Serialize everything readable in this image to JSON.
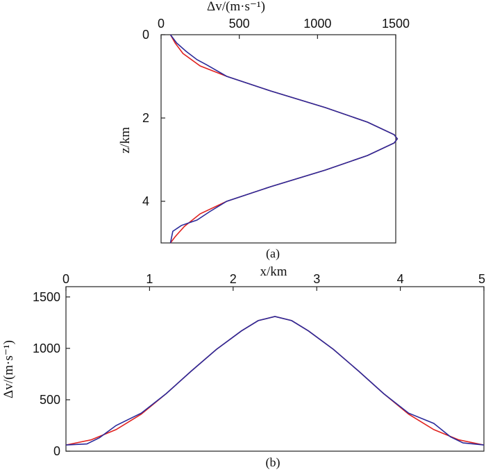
{
  "colors": {
    "true_model": "#e0221f",
    "inverted_model": "#2a2a9a"
  },
  "chart_data": [
    {
      "panel": "(a)",
      "type": "line",
      "xlabel": "Δv/(m·s⁻¹)",
      "ylabel": "z/km",
      "xlim": [
        0,
        1500
      ],
      "ylim": [
        0,
        5
      ],
      "y_inverted": true,
      "x_axis_position": "top",
      "xticks": [
        "0",
        "500",
        "1000",
        "1500"
      ],
      "yticks": [
        "0",
        "2",
        "4"
      ],
      "series": [
        {
          "color": "#e0221f",
          "points": [
            [
              60,
              0
            ],
            [
              90,
              0.2
            ],
            [
              140,
              0.45
            ],
            [
              250,
              0.75
            ],
            [
              420,
              1.0
            ],
            [
              700,
              1.35
            ],
            [
              1050,
              1.75
            ],
            [
              1320,
              2.1
            ],
            [
              1490,
              2.4
            ],
            [
              1510,
              2.5
            ],
            [
              1490,
              2.6
            ],
            [
              1320,
              2.9
            ],
            [
              1050,
              3.25
            ],
            [
              700,
              3.65
            ],
            [
              420,
              4.0
            ],
            [
              250,
              4.3
            ],
            [
              150,
              4.6
            ],
            [
              90,
              4.85
            ],
            [
              60,
              5.0
            ]
          ]
        },
        {
          "color": "#2a2a9a",
          "points": [
            [
              60,
              0
            ],
            [
              100,
              0.2
            ],
            [
              160,
              0.4
            ],
            [
              230,
              0.6
            ],
            [
              290,
              0.72
            ],
            [
              420,
              1.0
            ],
            [
              700,
              1.35
            ],
            [
              1050,
              1.75
            ],
            [
              1320,
              2.1
            ],
            [
              1490,
              2.4
            ],
            [
              1510,
              2.5
            ],
            [
              1490,
              2.6
            ],
            [
              1320,
              2.9
            ],
            [
              1050,
              3.25
            ],
            [
              700,
              3.65
            ],
            [
              420,
              4.0
            ],
            [
              310,
              4.25
            ],
            [
              230,
              4.45
            ],
            [
              130,
              4.58
            ],
            [
              75,
              4.72
            ],
            [
              60,
              5.0
            ]
          ]
        }
      ]
    },
    {
      "panel": "(b)",
      "type": "line",
      "xlabel": "x/km",
      "ylabel": "Δv/(m·s⁻¹)",
      "xlim": [
        0,
        5
      ],
      "ylim": [
        0,
        1600
      ],
      "x_axis_position": "top",
      "xticks": [
        "0",
        "1",
        "2",
        "3",
        "4",
        "5"
      ],
      "yticks": [
        "0",
        "500",
        "1000",
        "1500"
      ],
      "series": [
        {
          "color": "#e0221f",
          "points": [
            [
              0,
              60
            ],
            [
              0.3,
              110
            ],
            [
              0.6,
              210
            ],
            [
              0.9,
              360
            ],
            [
              1.2,
              560
            ],
            [
              1.5,
              780
            ],
            [
              1.8,
              990
            ],
            [
              2.1,
              1170
            ],
            [
              2.3,
              1270
            ],
            [
              2.5,
              1310
            ],
            [
              2.7,
              1270
            ],
            [
              2.9,
              1170
            ],
            [
              3.2,
              990
            ],
            [
              3.5,
              780
            ],
            [
              3.8,
              560
            ],
            [
              4.1,
              360
            ],
            [
              4.4,
              210
            ],
            [
              4.7,
              110
            ],
            [
              5.0,
              60
            ]
          ]
        },
        {
          "color": "#2a2a9a",
          "points": [
            [
              0,
              60
            ],
            [
              0.25,
              70
            ],
            [
              0.4,
              130
            ],
            [
              0.6,
              250
            ],
            [
              0.9,
              370
            ],
            [
              1.2,
              560
            ],
            [
              1.5,
              780
            ],
            [
              1.8,
              990
            ],
            [
              2.1,
              1170
            ],
            [
              2.3,
              1270
            ],
            [
              2.5,
              1310
            ],
            [
              2.7,
              1270
            ],
            [
              2.9,
              1170
            ],
            [
              3.2,
              990
            ],
            [
              3.5,
              780
            ],
            [
              3.8,
              560
            ],
            [
              4.1,
              370
            ],
            [
              4.4,
              270
            ],
            [
              4.6,
              140
            ],
            [
              4.75,
              80
            ],
            [
              5.0,
              60
            ]
          ]
        }
      ]
    }
  ]
}
